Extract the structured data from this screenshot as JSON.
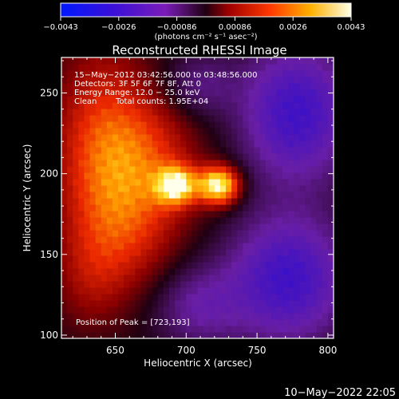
{
  "colorbar": {
    "tick_labels": [
      "−0.0043",
      "−0.0026",
      "−0.00086",
      "0.00086",
      "0.0026",
      "0.0043"
    ],
    "unit_label": "(photons cm⁻² s⁻¹ asec⁻²)",
    "range": [
      -0.0043,
      0.0043
    ]
  },
  "chart_data": {
    "type": "heatmap",
    "title": "Reconstructed RHESSI Image",
    "xlabel": "Heliocentric X (arcsec)",
    "ylabel": "Heliocentric Y (arcsec)",
    "xlim": [
      612,
      804
    ],
    "ylim": [
      98,
      272
    ],
    "x_ticks": [
      650,
      700,
      750,
      800
    ],
    "y_ticks": [
      100,
      150,
      200,
      250
    ],
    "x_tick_labels": [
      "650",
      "700",
      "750",
      "800"
    ],
    "y_tick_labels": [
      "100",
      "150",
      "200",
      "250"
    ],
    "annotations": [
      "15−May−2012 03:42:56.000 to 03:48:56.000",
      "Detectors: 3F 5F 6F 7F 8F, Att 0",
      "Energy Range: 12.0 − 25.0 keV",
      "Clean",
      "Total counts: 1.95E+04"
    ],
    "peak_label": "Position of Peak = [723,193]",
    "peak": [
      723,
      193
    ],
    "intensity_blobs": [
      {
        "x": 723,
        "y": 193,
        "sigma_x": 10,
        "sigma_y": 8,
        "value": 0.0043
      },
      {
        "x": 693,
        "y": 193,
        "sigma_x": 10,
        "sigma_y": 8,
        "value": 0.0037
      },
      {
        "x": 668,
        "y": 205,
        "sigma_x": 28,
        "sigma_y": 30,
        "value": 0.0019
      },
      {
        "x": 640,
        "y": 222,
        "sigma_x": 24,
        "sigma_y": 42,
        "value": 0.0016
      },
      {
        "x": 652,
        "y": 160,
        "sigma_x": 26,
        "sigma_y": 26,
        "value": 0.0012
      },
      {
        "x": 632,
        "y": 132,
        "sigma_x": 18,
        "sigma_y": 22,
        "value": 0.0007
      },
      {
        "x": 778,
        "y": 238,
        "sigma_x": 28,
        "sigma_y": 30,
        "value": -0.0024
      },
      {
        "x": 772,
        "y": 135,
        "sigma_x": 30,
        "sigma_y": 28,
        "value": -0.0024
      },
      {
        "x": 708,
        "y": 255,
        "sigma_x": 18,
        "sigma_y": 14,
        "value": -0.001
      },
      {
        "x": 708,
        "y": 118,
        "sigma_x": 22,
        "sigma_y": 18,
        "value": -0.0012
      }
    ]
  },
  "timestamp": "10−May−2022 22:05"
}
